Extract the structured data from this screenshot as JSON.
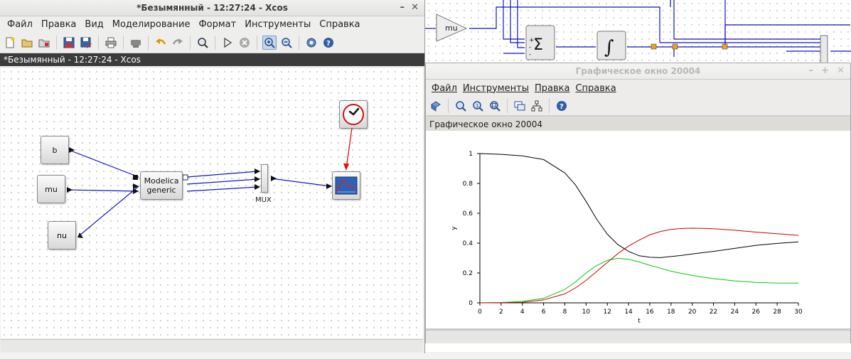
{
  "background_diagram": {
    "gain_label": "mu"
  },
  "xcos_window": {
    "title": "*Безымянный - 12:27:24 - Xcos",
    "doc_tab": "*Безымянный - 12:27:24 - Xcos",
    "menu": [
      "Файл",
      "Правка",
      "Вид",
      "Моделирование",
      "Формат",
      "Инструменты",
      "Справка"
    ],
    "toolbar_icons": [
      "new-icon",
      "open-icon",
      "open-file-icon",
      "save-icon",
      "save-as-icon",
      "print-icon",
      "export-icon",
      "undo-icon",
      "redo-icon",
      "fit-diagram-icon",
      "start-icon",
      "stop-icon",
      "zoom-in-icon",
      "zoom-out-icon",
      "setup-icon",
      "help-icon"
    ],
    "blocks": {
      "b": "b",
      "mu": "mu",
      "nu": "nu",
      "modelica_line1": "Modelica",
      "modelica_line2": "generic",
      "mux": "MUX"
    }
  },
  "graphics_window": {
    "title": "Графическое окно 20004",
    "tab": "Графическое окно 20004",
    "menu": [
      "Файл",
      "Инструменты",
      "Правка",
      "Справка"
    ],
    "toolbar_icons": [
      "rotate-icon",
      "zoom-area-icon",
      "zoom-reset-icon",
      "zoom-fit-icon",
      "datatip-icon",
      "editor-icon",
      "help-icon"
    ]
  },
  "chart_data": {
    "type": "line",
    "xlabel": "t",
    "ylabel": "y",
    "xlim": [
      0,
      30
    ],
    "ylim": [
      0,
      1
    ],
    "xticks": [
      0,
      2,
      4,
      6,
      8,
      10,
      12,
      14,
      16,
      18,
      20,
      22,
      24,
      26,
      28,
      30
    ],
    "yticks": [
      "0",
      "0.2",
      "0.4",
      "0.6",
      "0.8",
      "1"
    ],
    "colors": [
      "#000000",
      "#00cc00",
      "#cc0000"
    ],
    "x": [
      0,
      2,
      4,
      6,
      8,
      9,
      10,
      11,
      12,
      13,
      14,
      15,
      16,
      17,
      18,
      19,
      20,
      21,
      22,
      24,
      26,
      28,
      30
    ],
    "series": [
      {
        "values": [
          1.0,
          0.995,
          0.985,
          0.96,
          0.87,
          0.79,
          0.68,
          0.56,
          0.46,
          0.39,
          0.345,
          0.315,
          0.305,
          0.303,
          0.31,
          0.318,
          0.327,
          0.336,
          0.345,
          0.365,
          0.385,
          0.398,
          0.408
        ]
      },
      {
        "values": [
          0.0,
          0.002,
          0.01,
          0.03,
          0.09,
          0.14,
          0.2,
          0.25,
          0.285,
          0.298,
          0.292,
          0.274,
          0.252,
          0.232,
          0.212,
          0.197,
          0.184,
          0.172,
          0.162,
          0.147,
          0.137,
          0.133,
          0.132
        ]
      },
      {
        "values": [
          0.0,
          0.001,
          0.004,
          0.02,
          0.06,
          0.1,
          0.15,
          0.21,
          0.27,
          0.33,
          0.38,
          0.42,
          0.455,
          0.478,
          0.492,
          0.498,
          0.5,
          0.499,
          0.496,
          0.486,
          0.474,
          0.463,
          0.452
        ]
      }
    ]
  }
}
